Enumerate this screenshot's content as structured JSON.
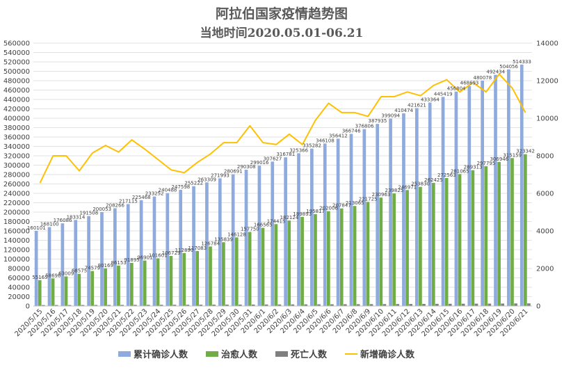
{
  "chart_data": {
    "type": "bar",
    "title": "阿拉伯国家疫情趋势图",
    "subtitle": "当地时间2020.05.01-06.21",
    "categories": [
      "2020/5/15",
      "2020/5/16",
      "2020/5/17",
      "2020/5/18",
      "2020/5/19",
      "2020/5/20",
      "2020/5/21",
      "2020/5/22",
      "2020/5/23",
      "2020/5/24",
      "2020/5/25",
      "2020/5/26",
      "2020/5/27",
      "2020/5/28",
      "2020/5/29",
      "2020/5/30",
      "2020/5/31",
      "2020/6/1",
      "2020/6/2",
      "2020/6/3",
      "2020/6/4",
      "2020/6/5",
      "2020/6/6",
      "2020/6/7",
      "2020/6/8",
      "2020/6/9",
      "2020/6/10",
      "2020/6/11",
      "2020/6/12",
      "2020/6/13",
      "2020/6/14",
      "2020/6/15",
      "2020/6/16",
      "2020/6/17",
      "2020/6/18",
      "2020/6/19",
      "2020/6/20",
      "2020/6/21"
    ],
    "y_left": {
      "min": 0,
      "max": 560000,
      "step": 20000
    },
    "y_right": {
      "min": 0,
      "max": 14000,
      "step": 2000
    },
    "legend_position": "bottom",
    "series": [
      {
        "name": "累计确诊人数",
        "kind": "bar",
        "axis": "left",
        "color": "#8faadc",
        "labels_shown": true,
        "values": [
          160101,
          168100,
          176086,
          183314,
          191508,
          200053,
          208266,
          217115,
          225468,
          233252,
          240488,
          247598,
          255222,
          263309,
          271993,
          280691,
          290308,
          299016,
          307627,
          316781,
          325366,
          335282,
          346108,
          356412,
          366746,
          376806,
          387935,
          399094,
          410474,
          421621,
          433364,
          445419,
          456804,
          468693,
          480078,
          492434,
          504056,
          514333
        ]
      },
      {
        "name": "治愈人数",
        "kind": "bar",
        "axis": "left",
        "color": "#70ad47",
        "labels_shown": true,
        "values": [
          55165,
          58696,
          63009,
          68575,
          74579,
          80169,
          86153,
          91895,
          96901,
          101601,
          106729,
          112890,
          117083,
          126784,
          135839,
          146128,
          157750,
          166565,
          174415,
          182124,
          189893,
          195817,
          202006,
          207847,
          213065,
          221725,
          230963,
          239825,
          246971,
          253830,
          262425,
          272563,
          281065,
          289313,
          297795,
          306946,
          315159,
          323342
        ]
      },
      {
        "name": "死亡人数",
        "kind": "bar",
        "axis": "left",
        "color": "#7f7f7f",
        "labels_shown": false,
        "values": [
          2000,
          2050,
          2100,
          2160,
          2220,
          2290,
          2360,
          2430,
          2500,
          2570,
          2640,
          2720,
          2800,
          2880,
          2960,
          3040,
          3120,
          3200,
          3290,
          3380,
          3480,
          3580,
          3680,
          3790,
          3900,
          4010,
          4130,
          4250,
          4370,
          4490,
          4620,
          4750,
          4880,
          5010,
          5150,
          5290,
          5430,
          5570
        ]
      },
      {
        "name": "新增确诊人数",
        "kind": "line",
        "axis": "right",
        "color": "#ffc000",
        "values": [
          6550,
          8000,
          8000,
          7200,
          8150,
          8550,
          8200,
          8850,
          8350,
          7800,
          7250,
          7100,
          7650,
          8100,
          8700,
          8700,
          9600,
          8700,
          8600,
          9150,
          8600,
          9900,
          10800,
          10300,
          10300,
          10100,
          11150,
          11150,
          11400,
          11200,
          11750,
          12050,
          11400,
          11900,
          11400,
          12350,
          11600,
          10300
        ]
      }
    ]
  }
}
